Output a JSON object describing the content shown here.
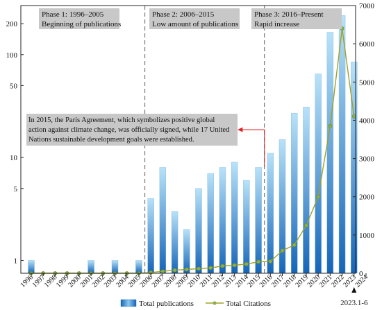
{
  "chart_data": {
    "type": "bar+line",
    "categories": [
      "1996",
      "1997",
      "1998",
      "1999",
      "2000",
      "2001",
      "2002",
      "2003",
      "2004",
      "2005",
      "2006",
      "2007",
      "2008",
      "2009",
      "2010",
      "2011",
      "2012",
      "2013",
      "2014",
      "2015",
      "2016",
      "2017",
      "2018",
      "2019",
      "2020",
      "2021",
      "2022",
      "2023"
    ],
    "x_tick_labels": [
      "1996",
      "1997",
      "1998",
      "1999",
      "2000",
      "2001",
      "2002",
      "2003",
      "2004",
      "2005",
      "2006",
      "2007",
      "2008",
      "2009",
      "2010",
      "2011",
      "2012",
      "2013",
      "2014",
      "2015",
      "2016",
      "2017",
      "2018",
      "2019",
      "2020",
      "2021",
      "2022",
      "2023",
      "2024"
    ],
    "series": [
      {
        "name": "Total  publications",
        "type": "bar",
        "axis": "left",
        "scale": "log",
        "values": [
          1,
          0,
          0,
          0,
          0,
          1,
          0,
          1,
          0,
          1,
          4,
          8,
          3,
          2,
          5,
          7,
          8,
          9,
          6,
          8,
          11,
          15,
          27,
          31,
          65,
          165,
          240,
          85
        ]
      },
      {
        "name": "Total Citations",
        "type": "line",
        "axis": "right",
        "values": [
          0,
          0,
          0,
          0,
          0,
          0,
          0,
          0,
          0,
          0,
          20,
          50,
          80,
          100,
          120,
          140,
          190,
          210,
          240,
          300,
          310,
          590,
          740,
          1250,
          2000,
          3850,
          6400,
          4100
        ]
      }
    ],
    "y_left": {
      "scale": "log",
      "ylim": [
        0.75,
        300
      ],
      "ticks": [
        1,
        5,
        10,
        50,
        100,
        200
      ]
    },
    "y_right": {
      "ylim": [
        0,
        7000
      ],
      "ticks": [
        0,
        1000,
        2000,
        3000,
        4000,
        5000,
        6000,
        7000
      ]
    },
    "phases": [
      {
        "title": "Phase 1: 1996–2005",
        "subtitle": "Beginning of publications"
      },
      {
        "title": "Phase 2: 2006–2015",
        "subtitle": "Low amount of publications"
      },
      {
        "title": "Phase 3: 2016–Present",
        "subtitle": "Rapid increase"
      }
    ],
    "annotation": {
      "lines": [
        "In 2015, the Paris Agreement, which symbolizes positive global",
        "action against climate change, was officially signed, while 17 United",
        "Nations sustainable development goals were established."
      ]
    },
    "note_2023": "2023.1-6",
    "legend": {
      "placement": "bottom-center"
    },
    "colors": {
      "bar_top": "#b8e2f8",
      "bar_bottom": "#1565b8",
      "line": "#a0a024",
      "marker": "#8ab048",
      "phase_box": "#c8c8c8",
      "annotation_arrow": "#e02020"
    }
  }
}
